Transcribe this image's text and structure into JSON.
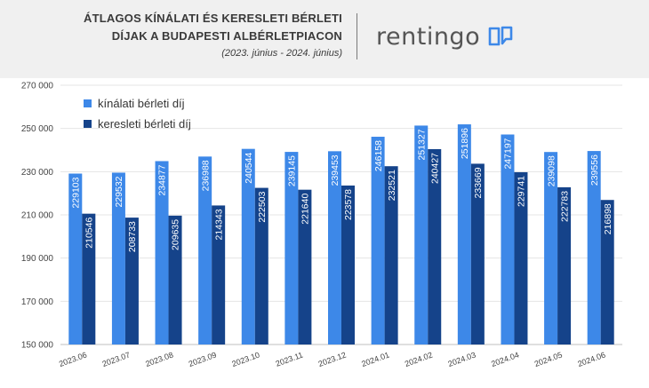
{
  "header": {
    "title_line1": "ÁTLAGOS KÍNÁLATI ÉS KERESLETI BÉRLETI",
    "title_line2": "DÍJAK A BUDAPESTI ALBÉRLETPIACON",
    "subtitle": "(2023. június - 2024. június)",
    "logo_text": "rentingo"
  },
  "colors": {
    "kinalati": "#3d88e8",
    "keresleti": "#15438a"
  },
  "chart_data": {
    "type": "bar",
    "title": "ÁTLAGOS KÍNÁLATI ÉS KERESLETI BÉRLETI DÍJAK A BUDAPESTI ALBÉRLETPIACON",
    "subtitle": "(2023. június - 2024. június)",
    "categories": [
      "2023.06",
      "2023.07",
      "2023.08",
      "2023.09",
      "2023.10",
      "2023.11",
      "2023.12",
      "2024.01",
      "2024.02",
      "2024.03",
      "2024.04",
      "2024.05",
      "2024.06"
    ],
    "series": [
      {
        "name": "kínálati bérleti díj",
        "values": [
          229103,
          229532,
          234877,
          236988,
          240544,
          239145,
          239453,
          246158,
          251327,
          251896,
          247197,
          239098,
          239556
        ]
      },
      {
        "name": "keresleti bérleti díj",
        "values": [
          210546,
          208733,
          209635,
          214343,
          222503,
          221640,
          223578,
          232521,
          240427,
          233669,
          229741,
          222783,
          216898
        ]
      }
    ],
    "yticks": [
      "150 000",
      "170 000",
      "190 000",
      "210 000",
      "230 000",
      "250 000",
      "270 000"
    ],
    "ylim": [
      150000,
      270000
    ],
    "legend_position": "top-left",
    "grid": true
  }
}
